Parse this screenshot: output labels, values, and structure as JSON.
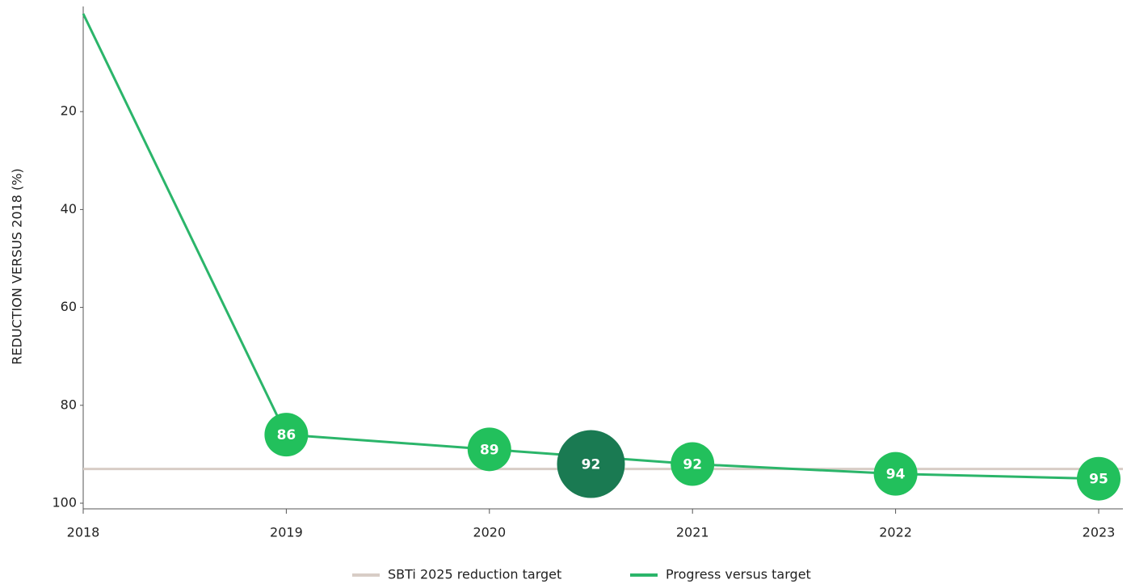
{
  "chart_data": {
    "type": "line",
    "y_label": "REDUCTION VERSUS 2018 (%)",
    "x": [
      2018,
      2019,
      2020,
      2021,
      2022,
      2023
    ],
    "xlim": [
      2018,
      2023
    ],
    "xticks": [
      2018,
      2019,
      2020,
      2021,
      2022,
      2023
    ],
    "ylim": [
      0,
      100
    ],
    "yticks": [
      20,
      40,
      60,
      80,
      100
    ],
    "y_reversed": true,
    "target": {
      "name": "SBTi 2025 reduction target",
      "color": "#d8cdc6",
      "value": 93
    },
    "series": [
      {
        "name": "Progress versus target",
        "color": "#2bb56a",
        "marker_color": "#22c05c",
        "values": [
          0,
          86,
          89,
          92,
          94,
          95
        ]
      }
    ],
    "highlight": {
      "x": 2020.5,
      "value": 92,
      "color": "#1a7a52"
    }
  }
}
